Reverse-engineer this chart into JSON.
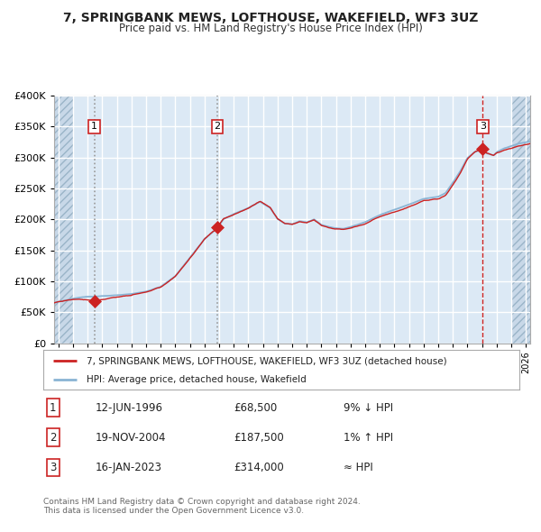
{
  "title": "7, SPRINGBANK MEWS, LOFTHOUSE, WAKEFIELD, WF3 3UZ",
  "subtitle": "Price paid vs. HM Land Registry's House Price Index (HPI)",
  "sale_prices": [
    68500,
    187500,
    314000
  ],
  "sale_labels": [
    "1",
    "2",
    "3"
  ],
  "sale_decimal": [
    1996.454,
    2004.879,
    2023.046
  ],
  "sale_table": [
    [
      "1",
      "12-JUN-1996",
      "£68,500",
      "9% ↓ HPI"
    ],
    [
      "2",
      "19-NOV-2004",
      "£187,500",
      "1% ↑ HPI"
    ],
    [
      "3",
      "16-JAN-2023",
      "£314,000",
      "≈ HPI"
    ]
  ],
  "legend_line1": "7, SPRINGBANK MEWS, LOFTHOUSE, WAKEFIELD, WF3 3UZ (detached house)",
  "legend_line2": "HPI: Average price, detached house, Wakefield",
  "hpi_color": "#8ab4d4",
  "price_color": "#cc2222",
  "bg_color": "#dce9f5",
  "grid_color": "#ffffff",
  "hatch_bg_color": "#c8d8e8",
  "ylim": [
    0,
    400000
  ],
  "yticks": [
    0,
    50000,
    100000,
    150000,
    200000,
    250000,
    300000,
    350000,
    400000
  ],
  "xlim_start": 1993.7,
  "xlim_end": 2026.3,
  "hatch_left_end": 1995.0,
  "hatch_right_start": 2025.0,
  "sale_vline_styles": [
    "dotted_gray",
    "dotted_gray",
    "dashed_red"
  ],
  "footnote": "Contains HM Land Registry data © Crown copyright and database right 2024.\nThis data is licensed under the Open Government Licence v3.0."
}
